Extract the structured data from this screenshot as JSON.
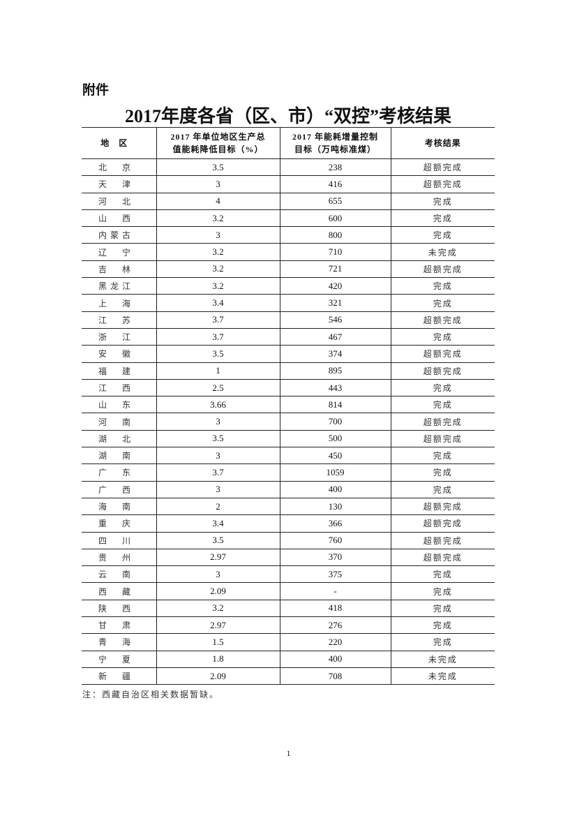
{
  "attachment_label": "附件",
  "title": "2017年度各省（区、市）“双控”考核结果",
  "table": {
    "headers": [
      "地区",
      "2017年单位地区生产总值能耗降低目标（%）",
      "2017年能耗增量控制目标（万吨标准煤）",
      "考核结果"
    ],
    "header_lines": {
      "h2a": "2017 年单位地区生产总",
      "h2b": "值能耗降低目标（%）",
      "h3a": "2017 年能耗增量控制",
      "h3b": "目标（万吨标准煤）"
    },
    "rows": [
      [
        "北京",
        "3.5",
        "238",
        "超额完成"
      ],
      [
        "天津",
        "3",
        "416",
        "超额完成"
      ],
      [
        "河北",
        "4",
        "655",
        "完成"
      ],
      [
        "山西",
        "3.2",
        "600",
        "完成"
      ],
      [
        "内蒙古",
        "3",
        "800",
        "完成"
      ],
      [
        "辽宁",
        "3.2",
        "710",
        "未完成"
      ],
      [
        "吉林",
        "3.2",
        "721",
        "超额完成"
      ],
      [
        "黑龙江",
        "3.2",
        "420",
        "完成"
      ],
      [
        "上海",
        "3.4",
        "321",
        "完成"
      ],
      [
        "江苏",
        "3.7",
        "546",
        "超额完成"
      ],
      [
        "浙江",
        "3.7",
        "467",
        "完成"
      ],
      [
        "安徽",
        "3.5",
        "374",
        "超额完成"
      ],
      [
        "福建",
        "1",
        "895",
        "超额完成"
      ],
      [
        "江西",
        "2.5",
        "443",
        "完成"
      ],
      [
        "山东",
        "3.66",
        "814",
        "完成"
      ],
      [
        "河南",
        "3",
        "700",
        "超额完成"
      ],
      [
        "湖北",
        "3.5",
        "500",
        "超额完成"
      ],
      [
        "湖南",
        "3",
        "450",
        "完成"
      ],
      [
        "广东",
        "3.7",
        "1059",
        "完成"
      ],
      [
        "广西",
        "3",
        "400",
        "完成"
      ],
      [
        "海南",
        "2",
        "130",
        "超额完成"
      ],
      [
        "重庆",
        "3.4",
        "366",
        "超额完成"
      ],
      [
        "四川",
        "3.5",
        "760",
        "超额完成"
      ],
      [
        "贵州",
        "2.97",
        "370",
        "超额完成"
      ],
      [
        "云南",
        "3",
        "375",
        "完成"
      ],
      [
        "西藏",
        "2.09",
        "-",
        "完成"
      ],
      [
        "陕西",
        "3.2",
        "418",
        "完成"
      ],
      [
        "甘肃",
        "2.97",
        "276",
        "完成"
      ],
      [
        "青海",
        "1.5",
        "220",
        "完成"
      ],
      [
        "宁夏",
        "1.8",
        "400",
        "未完成"
      ],
      [
        "新疆",
        "2.09",
        "708",
        "未完成"
      ]
    ]
  },
  "note": "注：西藏自治区相关数据暂缺。",
  "page_number": "1"
}
